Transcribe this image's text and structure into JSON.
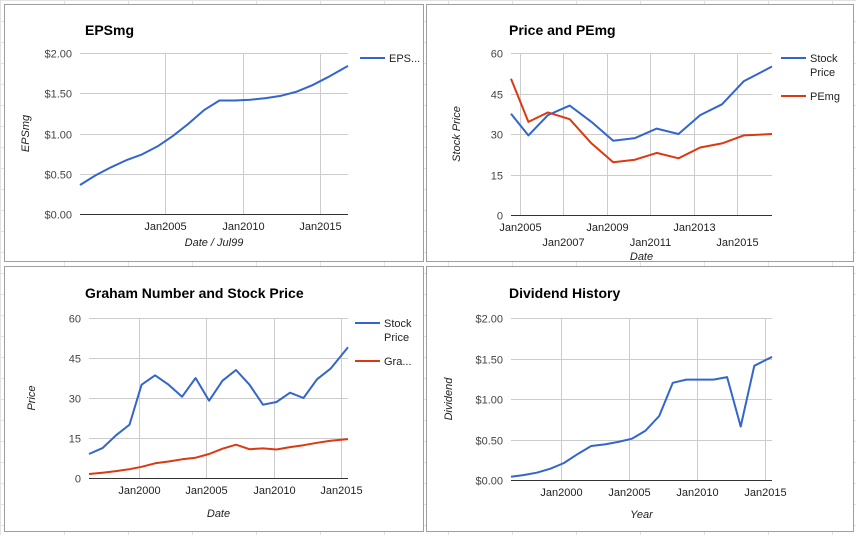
{
  "charts": [
    {
      "title": "EPSmg",
      "chart_data": {
        "type": "line",
        "title": "EPSmg",
        "xlabel": "Date / Jul99",
        "ylabel": "EPSmg",
        "xlim": [
          1999.5,
          2016.8
        ],
        "ylim": [
          0,
          2
        ],
        "yticks": [
          0,
          0.5,
          1,
          1.5,
          2
        ],
        "ytick_labels": [
          "$0.00",
          "$0.50",
          "$1.00",
          "$1.50",
          "$2.00"
        ],
        "xticks": [
          {
            "x": 2005,
            "label": "Jan2005",
            "row": 0
          },
          {
            "x": 2010,
            "label": "Jan2010",
            "row": 0
          },
          {
            "x": 2015,
            "label": "Jan2015",
            "row": 0
          }
        ],
        "grid": true,
        "legend_position": "right",
        "series": [
          {
            "name": "EPS...",
            "color": "#3366cc",
            "x": [
              1999.5,
              2000.5,
              2001.5,
              2002.5,
              2003.5,
              2004.5,
              2005.5,
              2006.5,
              2007.5,
              2008.5,
              2009.5,
              2010.5,
              2011.5,
              2012.5,
              2013.5,
              2014.5,
              2015.5,
              2016.8
            ],
            "y": [
              0.36,
              0.48,
              0.58,
              0.67,
              0.74,
              0.84,
              0.97,
              1.12,
              1.29,
              1.41,
              1.41,
              1.42,
              1.44,
              1.47,
              1.52,
              1.6,
              1.7,
              1.84
            ]
          }
        ]
      }
    },
    {
      "title": "Price and PEmg",
      "chart_data": {
        "type": "line",
        "title": "Price and PEmg",
        "xlabel": "Date",
        "ylabel": "Stock Price",
        "xlim": [
          2004.6,
          2016.6
        ],
        "ylim": [
          0,
          60
        ],
        "yticks": [
          0,
          15,
          30,
          45,
          60
        ],
        "ytick_labels": [
          "0",
          "15",
          "30",
          "45",
          "60"
        ],
        "xticks": [
          {
            "x": 2005,
            "label": "Jan2005",
            "row": 0
          },
          {
            "x": 2007,
            "label": "Jan2007",
            "row": 1
          },
          {
            "x": 2009,
            "label": "Jan2009",
            "row": 0
          },
          {
            "x": 2011,
            "label": "Jan2011",
            "row": 1
          },
          {
            "x": 2013,
            "label": "Jan2013",
            "row": 0
          },
          {
            "x": 2015,
            "label": "Jan2015",
            "row": 1
          }
        ],
        "grid": true,
        "legend_position": "right",
        "series": [
          {
            "name": "Stock Price",
            "color": "#3366cc",
            "x": [
              2004.6,
              2005.4,
              2006.3,
              2007.3,
              2008.3,
              2009.3,
              2010.3,
              2011.3,
              2012.3,
              2013.3,
              2014.3,
              2015.3,
              2016.6
            ],
            "y": [
              37.5,
              29.5,
              37,
              40.5,
              34.5,
              27.5,
              28.5,
              32,
              30,
              37,
              41,
              49.5,
              55
            ]
          },
          {
            "name": "PEmg",
            "color": "#dc3912",
            "x": [
              2004.6,
              2005.4,
              2006.3,
              2007.3,
              2008.3,
              2009.3,
              2010.3,
              2011.3,
              2012.3,
              2013.3,
              2014.3,
              2015.3,
              2016.6
            ],
            "y": [
              50.5,
              34.5,
              38,
              35.5,
              26.5,
              19.5,
              20.5,
              23,
              21,
              25,
              26.5,
              29.5,
              30
            ]
          }
        ]
      }
    },
    {
      "title": "Graham Number and Stock Price",
      "chart_data": {
        "type": "line",
        "title": "Graham Number and Stock Price",
        "xlabel": "Date",
        "ylabel": "Price",
        "xlim": [
          1996.3,
          2015.5
        ],
        "ylim": [
          0,
          60
        ],
        "yticks": [
          0,
          15,
          30,
          45,
          60
        ],
        "ytick_labels": [
          "0",
          "15",
          "30",
          "45",
          "60"
        ],
        "xticks": [
          {
            "x": 2000,
            "label": "Jan2000",
            "row": 0
          },
          {
            "x": 2005,
            "label": "Jan2005",
            "row": 0
          },
          {
            "x": 2010,
            "label": "Jan2010",
            "row": 0
          },
          {
            "x": 2015,
            "label": "Jan2015",
            "row": 0
          }
        ],
        "grid": true,
        "legend_position": "right",
        "series": [
          {
            "name": "Stock Price",
            "color": "#3366cc",
            "x": [
              1996.3,
              1997.3,
              1998.3,
              1999.3,
              2000.2,
              2001.2,
              2002.2,
              2003.2,
              2004.2,
              2005.2,
              2006.2,
              2007.2,
              2008.2,
              2009.2,
              2010.2,
              2011.2,
              2012.2,
              2013.2,
              2014.2,
              2015.5
            ],
            "y": [
              9,
              11.2,
              16,
              20,
              35,
              38.5,
              35,
              30.5,
              37.5,
              29,
              36.5,
              40.5,
              35,
              27.5,
              28.5,
              32,
              30,
              37,
              41,
              49
            ]
          },
          {
            "name": "Gra...",
            "color": "#dc3912",
            "x": [
              1996.3,
              1997.3,
              1998.3,
              1999.3,
              2000.2,
              2001.2,
              2002.2,
              2003.2,
              2004.2,
              2005.2,
              2006.2,
              2007.2,
              2008.2,
              2009.2,
              2010.2,
              2011.2,
              2012.2,
              2013.2,
              2014.2,
              2015.5
            ],
            "y": [
              1.5,
              2,
              2.6,
              3.3,
              4.2,
              5.5,
              6.2,
              7,
              7.6,
              9,
              11,
              12.5,
              10.8,
              11.1,
              10.7,
              11.6,
              12.3,
              13.2,
              14,
              14.6
            ]
          }
        ]
      }
    },
    {
      "title": "Dividend History",
      "chart_data": {
        "type": "line",
        "title": "Dividend History",
        "xlabel": "Year",
        "ylabel": "Dividend",
        "xlim": [
          1996.3,
          2015.5
        ],
        "ylim": [
          0,
          2
        ],
        "yticks": [
          0,
          0.5,
          1,
          1.5,
          2
        ],
        "ytick_labels": [
          "$0.00",
          "$0.50",
          "$1.00",
          "$1.50",
          "$2.00"
        ],
        "xticks": [
          {
            "x": 2000,
            "label": "Jan2000",
            "row": 0
          },
          {
            "x": 2005,
            "label": "Jan2005",
            "row": 0
          },
          {
            "x": 2010,
            "label": "Jan2010",
            "row": 0
          },
          {
            "x": 2015,
            "label": "Jan2015",
            "row": 0
          }
        ],
        "grid": true,
        "legend_position": "none",
        "series": [
          {
            "name": "",
            "color": "#3366cc",
            "x": [
              1996.3,
              1997.2,
              1998.2,
              1999.2,
              2000.2,
              2001.2,
              2002.2,
              2003.2,
              2004.2,
              2005.2,
              2006.2,
              2007.2,
              2008.2,
              2009.2,
              2010.2,
              2011.2,
              2012.2,
              2013.2,
              2014.2,
              2015.5
            ],
            "y": [
              0.04,
              0.06,
              0.09,
              0.14,
              0.21,
              0.32,
              0.42,
              0.44,
              0.47,
              0.51,
              0.61,
              0.79,
              1.2,
              1.24,
              1.24,
              1.24,
              1.27,
              0.66,
              1.41,
              1.52
            ]
          }
        ]
      }
    }
  ]
}
